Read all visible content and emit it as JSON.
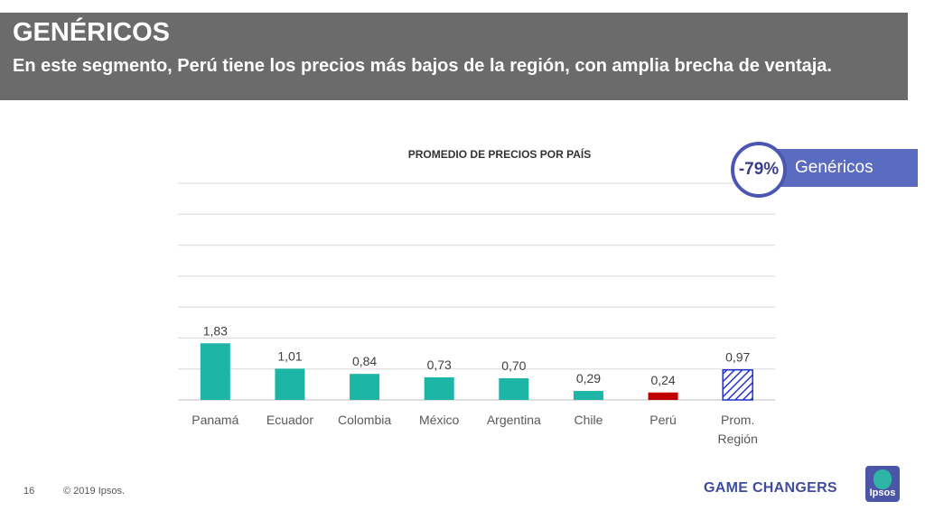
{
  "header": {
    "title": "GENÉRICOS",
    "subtitle": "En este segmento, Perú tiene los precios más bajos de la región, con amplia brecha de ventaja."
  },
  "badge": {
    "value": "-79%",
    "label": "Genéricos"
  },
  "footer": {
    "page": "16",
    "copyright": "© 2019 Ipsos.",
    "brand": "GAME CHANGERS",
    "logo_text": "Ipsos"
  },
  "colors": {
    "teal": "#1cb5a6",
    "red": "#c00000",
    "hatch": "#2233cc",
    "grid": "#d9d9d9"
  },
  "chart_data": {
    "type": "bar",
    "title": "PROMEDIO DE PRECIOS POR PAÍS",
    "categories": [
      "Panamá",
      "Ecuador",
      "Colombia",
      "México",
      "Argentina",
      "Chile",
      "Perú",
      "Prom. Región"
    ],
    "values": [
      1.83,
      1.01,
      0.84,
      0.73,
      0.7,
      0.29,
      0.24,
      0.97
    ],
    "data_labels": [
      "1,83",
      "1,01",
      "0,84",
      "0,73",
      "0,70",
      "0,29",
      "0,24",
      "0,97"
    ],
    "bar_styles": [
      "solid",
      "solid",
      "solid",
      "solid",
      "solid",
      "solid",
      "highlight",
      "hatched"
    ],
    "ylim": [
      0,
      7
    ],
    "grid": true,
    "legend": "none"
  }
}
